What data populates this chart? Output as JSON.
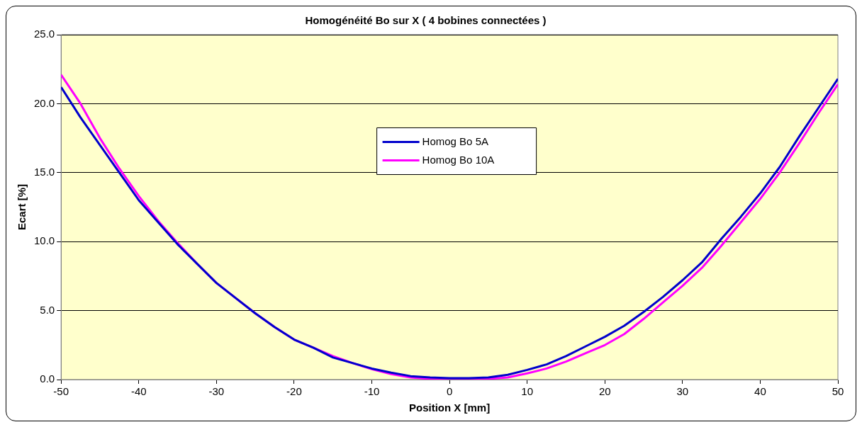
{
  "chart_data": {
    "type": "line",
    "title": "Homogénéité Bo sur X ( 4 bobines connectées )",
    "xlabel": "Position X [mm]",
    "ylabel": "Ecart [%]",
    "x": [
      -50,
      -47.5,
      -45,
      -42.5,
      -40,
      -37.5,
      -35,
      -32.5,
      -30,
      -27.5,
      -25,
      -22.5,
      -20,
      -17.5,
      -15,
      -12.5,
      -10,
      -7.5,
      -5,
      -2.5,
      0,
      2.5,
      5,
      7.5,
      10,
      12.5,
      15,
      17.5,
      20,
      22.5,
      25,
      27.5,
      30,
      32.5,
      35,
      37.5,
      40,
      42.5,
      45,
      47.5,
      50
    ],
    "series": [
      {
        "name": "Homog Bo 5A",
        "color": "#0000cc",
        "values": [
          21.2,
          19.0,
          17.0,
          15.0,
          13.0,
          11.4,
          9.8,
          8.4,
          7.0,
          5.9,
          4.8,
          3.8,
          2.9,
          2.3,
          1.6,
          1.2,
          0.8,
          0.5,
          0.25,
          0.15,
          0.1,
          0.1,
          0.15,
          0.35,
          0.7,
          1.1,
          1.7,
          2.4,
          3.1,
          3.9,
          4.9,
          6.0,
          7.2,
          8.5,
          10.2,
          11.8,
          13.5,
          15.4,
          17.6,
          19.7,
          21.8
        ]
      },
      {
        "name": "Homog Bo 10A",
        "color": "#ff00ff",
        "values": [
          22.1,
          20.0,
          17.5,
          15.3,
          13.3,
          11.5,
          9.9,
          8.4,
          7.0,
          5.9,
          4.8,
          3.8,
          2.9,
          2.3,
          1.7,
          1.2,
          0.75,
          0.4,
          0.15,
          0.05,
          0.0,
          0.0,
          0.05,
          0.15,
          0.45,
          0.8,
          1.3,
          1.9,
          2.5,
          3.3,
          4.4,
          5.6,
          6.8,
          8.1,
          9.7,
          11.4,
          13.1,
          15.0,
          17.1,
          19.3,
          21.4
        ]
      }
    ],
    "xlim": [
      -50,
      50
    ],
    "xticks": [
      -50,
      -40,
      -30,
      -20,
      -10,
      0,
      10,
      20,
      30,
      40,
      50
    ],
    "ylim": [
      0,
      25
    ],
    "yticks": [
      {
        "value": 0,
        "label": "0.0"
      },
      {
        "value": 5,
        "label": "5.0"
      },
      {
        "value": 10,
        "label": "10.0"
      },
      {
        "value": 15,
        "label": "15.0"
      },
      {
        "value": 20,
        "label": "20.0"
      },
      {
        "value": 25,
        "label": "25.0"
      }
    ],
    "grid": "y",
    "legend": "center",
    "marker": "none",
    "line_style": "solid"
  }
}
